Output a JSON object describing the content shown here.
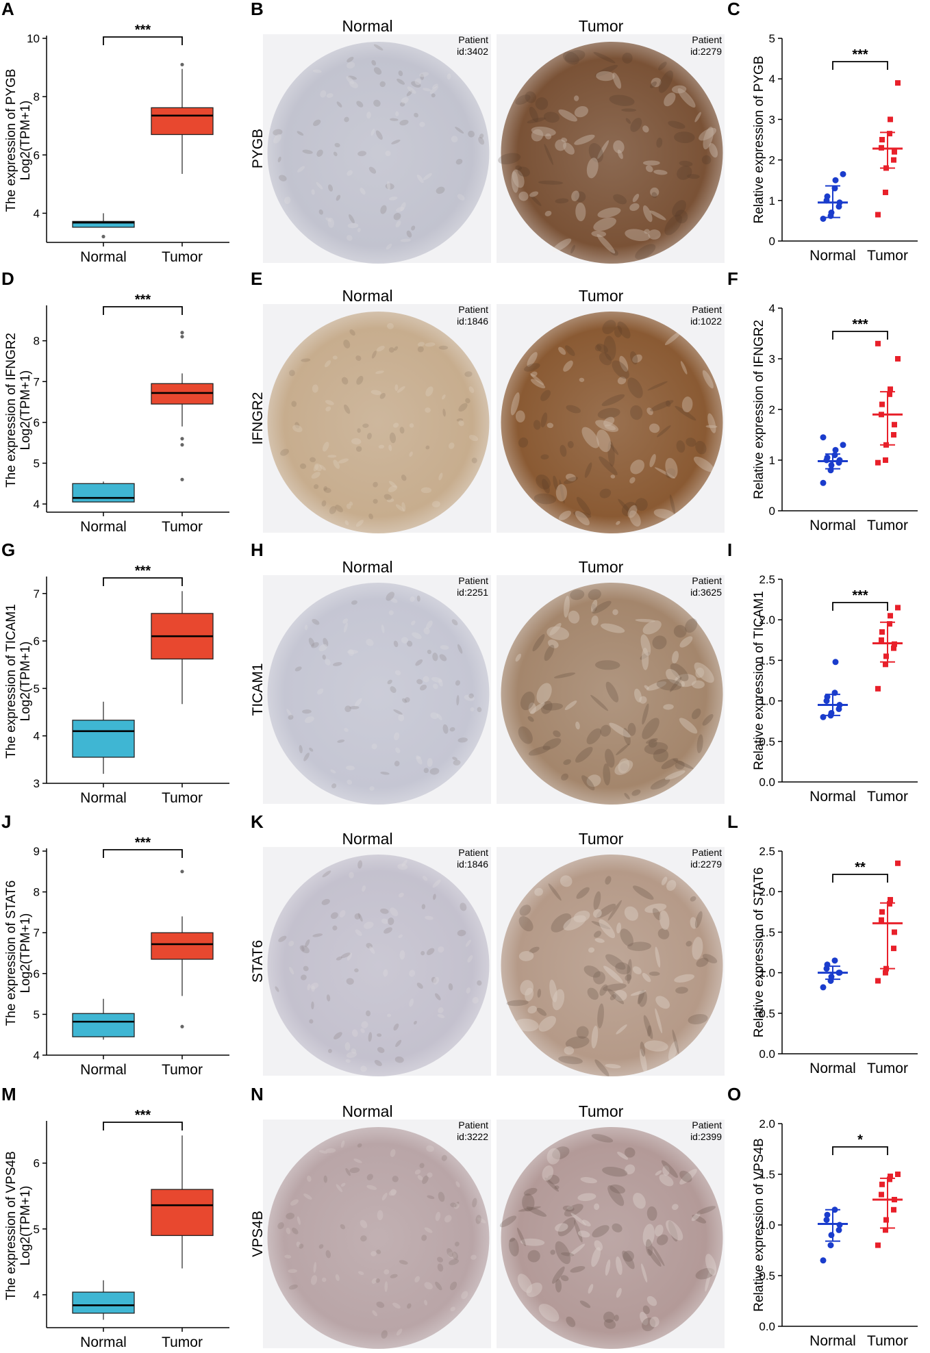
{
  "figure": {
    "rows": [
      {
        "gene": "PYGB",
        "tcga": {
          "letter": "A",
          "ylabel_line1": "The expression of PYGB",
          "ylabel_line2": "Log2(TPM+1)",
          "ylim": [
            3,
            10
          ],
          "ticks": [
            4,
            6,
            8,
            10
          ],
          "categories": [
            "Normal",
            "Tumor"
          ],
          "boxes": [
            {
              "name": "Normal",
              "color": "#3fb6d3",
              "q1": 3.52,
              "median": 3.68,
              "q3": 3.72,
              "whisker_low": 3.52,
              "whisker_high": 4.0,
              "outliers": [
                3.2
              ]
            },
            {
              "name": "Tumor",
              "color": "#e8482f",
              "q1": 6.7,
              "median": 7.35,
              "q3": 7.62,
              "whisker_low": 5.35,
              "whisker_high": 8.95,
              "outliers": [
                9.1
              ]
            }
          ],
          "significance": "***"
        },
        "ihc": {
          "letter": "B",
          "normal_label": "Normal",
          "tumor_label": "Tumor",
          "normal_patient": [
            "Patient",
            "id:3402"
          ],
          "tumor_patient": [
            "Patient",
            "id:2279"
          ],
          "normal_tint": "#c2c3cf",
          "tumor_tint": "#7a5236"
        },
        "qpcr": {
          "letter": "C",
          "ylabel": "Relative expression of PYGB",
          "ylim": [
            0,
            5
          ],
          "ticks": [
            0,
            1,
            2,
            3,
            4,
            5
          ],
          "tick_labels": [
            "0",
            "1",
            "2",
            "3",
            "4",
            "5"
          ],
          "categories": [
            "Normal",
            "Tumor"
          ],
          "groups": [
            {
              "name": "Normal",
              "color": "#1a3ccc",
              "mean": 0.95,
              "sd_low": 0.58,
              "sd_high": 1.36,
              "points": [
                0.55,
                0.62,
                0.7,
                0.85,
                0.95,
                1.0,
                1.1,
                1.3,
                1.5,
                1.65
              ]
            },
            {
              "name": "Tumor",
              "color": "#e8202a",
              "mean": 2.28,
              "sd_low": 1.8,
              "sd_high": 2.68,
              "points": [
                0.65,
                1.2,
                1.8,
                2.0,
                2.2,
                2.3,
                2.5,
                2.65,
                3.0,
                3.9
              ]
            }
          ],
          "significance": "***"
        }
      },
      {
        "gene": "IFNGR2",
        "tcga": {
          "letter": "D",
          "ylabel_line1": "The expression of IFNGR2",
          "ylabel_line2": "Log2(TPM+1)",
          "ylim": [
            3.8,
            8.8
          ],
          "ticks": [
            4,
            5,
            6,
            7,
            8
          ],
          "categories": [
            "Normal",
            "Tumor"
          ],
          "boxes": [
            {
              "name": "Normal",
              "color": "#3fb6d3",
              "q1": 4.05,
              "median": 4.15,
              "q3": 4.5,
              "whisker_low": 4.05,
              "whisker_high": 4.55,
              "outliers": []
            },
            {
              "name": "Tumor",
              "color": "#e8482f",
              "q1": 6.45,
              "median": 6.72,
              "q3": 6.95,
              "whisker_low": 5.9,
              "whisker_high": 7.2,
              "outliers": [
                5.6,
                5.45,
                4.6,
                8.1,
                8.2
              ]
            }
          ],
          "significance": "***"
        },
        "ihc": {
          "letter": "E",
          "normal_label": "Normal",
          "tumor_label": "Tumor",
          "normal_patient": [
            "Patient",
            "id:1846"
          ],
          "tumor_patient": [
            "Patient",
            "id:1022"
          ],
          "normal_tint": "#c7ad8e",
          "tumor_tint": "#8a5a33"
        },
        "qpcr": {
          "letter": "F",
          "ylabel": "Relative expression of IFNGR2",
          "ylim": [
            0,
            4
          ],
          "ticks": [
            0,
            1,
            2,
            3,
            4
          ],
          "tick_labels": [
            "0",
            "1",
            "2",
            "3",
            "4"
          ],
          "categories": [
            "Normal",
            "Tumor"
          ],
          "groups": [
            {
              "name": "Normal",
              "color": "#1a3ccc",
              "mean": 0.98,
              "sd_low": 0.83,
              "sd_high": 1.12,
              "points": [
                0.55,
                0.8,
                0.9,
                0.95,
                1.0,
                1.0,
                1.05,
                1.1,
                1.2,
                1.3,
                1.45
              ]
            },
            {
              "name": "Tumor",
              "color": "#e8202a",
              "mean": 1.9,
              "sd_low": 1.3,
              "sd_high": 2.35,
              "points": [
                0.95,
                1.0,
                1.3,
                1.5,
                1.7,
                1.9,
                2.1,
                2.3,
                2.4,
                3.0,
                3.3
              ]
            }
          ],
          "significance": "***"
        }
      },
      {
        "gene": "TICAM1",
        "tcga": {
          "letter": "G",
          "ylabel_line1": "The expression of TICAM1",
          "ylabel_line2": "Log2(TPM+1)",
          "ylim": [
            3,
            7.3
          ],
          "ticks": [
            3,
            4,
            5,
            6,
            7
          ],
          "categories": [
            "Normal",
            "Tumor"
          ],
          "boxes": [
            {
              "name": "Normal",
              "color": "#3fb6d3",
              "q1": 3.55,
              "median": 4.1,
              "q3": 4.33,
              "whisker_low": 3.2,
              "whisker_high": 4.72,
              "outliers": []
            },
            {
              "name": "Tumor",
              "color": "#e8482f",
              "q1": 5.62,
              "median": 6.1,
              "q3": 6.58,
              "whisker_low": 4.67,
              "whisker_high": 7.05,
              "outliers": []
            }
          ],
          "significance": "***"
        },
        "ihc": {
          "letter": "H",
          "normal_label": "Normal",
          "tumor_label": "Tumor",
          "normal_patient": [
            "Patient",
            "id:2251"
          ],
          "tumor_patient": [
            "Patient",
            "id:3625"
          ],
          "normal_tint": "#c5c6d3",
          "tumor_tint": "#a4866c"
        },
        "qpcr": {
          "letter": "I",
          "ylabel": "Relative expression of TICAM1",
          "ylim": [
            0,
            2.5
          ],
          "ticks": [
            0,
            0.5,
            1,
            1.5,
            2,
            2.5
          ],
          "tick_labels": [
            "0.0",
            "0.5",
            "1.0",
            "1.5",
            "2.0",
            "2.5"
          ],
          "categories": [
            "Normal",
            "Tumor"
          ],
          "groups": [
            {
              "name": "Normal",
              "color": "#1a3ccc",
              "mean": 0.95,
              "sd_low": 0.82,
              "sd_high": 1.08,
              "points": [
                0.8,
                0.82,
                0.85,
                0.9,
                0.95,
                1.0,
                1.05,
                1.1,
                1.48
              ]
            },
            {
              "name": "Tumor",
              "color": "#e8202a",
              "mean": 1.71,
              "sd_low": 1.48,
              "sd_high": 1.97,
              "points": [
                1.15,
                1.45,
                1.55,
                1.65,
                1.7,
                1.75,
                1.85,
                1.95,
                2.05,
                2.15
              ]
            }
          ],
          "significance": "***"
        }
      },
      {
        "gene": "STAT6",
        "tcga": {
          "letter": "J",
          "ylabel_line1": "The expression of STAT6",
          "ylabel_line2": "Log2(TPM+1)",
          "ylim": [
            4,
            9
          ],
          "ticks": [
            4,
            5,
            6,
            7,
            8,
            9
          ],
          "categories": [
            "Normal",
            "Tumor"
          ],
          "boxes": [
            {
              "name": "Normal",
              "color": "#3fb6d3",
              "q1": 4.45,
              "median": 4.82,
              "q3": 5.02,
              "whisker_low": 4.38,
              "whisker_high": 5.38,
              "outliers": []
            },
            {
              "name": "Tumor",
              "color": "#e8482f",
              "q1": 6.35,
              "median": 6.72,
              "q3": 7.0,
              "whisker_low": 5.45,
              "whisker_high": 7.4,
              "outliers": [
                4.7,
                8.5
              ]
            }
          ],
          "significance": "***"
        },
        "ihc": {
          "letter": "K",
          "normal_label": "Normal",
          "tumor_label": "Tumor",
          "normal_patient": [
            "Patient",
            "id:1846"
          ],
          "tumor_patient": [
            "Patient",
            "id:2279"
          ],
          "normal_tint": "#c4c1ce",
          "tumor_tint": "#b59a88"
        },
        "qpcr": {
          "letter": "L",
          "ylabel": "Relative expression of STAT6",
          "ylim": [
            0,
            2.5
          ],
          "ticks": [
            0,
            0.5,
            1,
            1.5,
            2,
            2.5
          ],
          "tick_labels": [
            "0.0",
            "0.5",
            "1.0",
            "1.5",
            "2.0",
            "2.5"
          ],
          "categories": [
            "Normal",
            "Tumor"
          ],
          "groups": [
            {
              "name": "Normal",
              "color": "#1a3ccc",
              "mean": 1.0,
              "sd_low": 0.92,
              "sd_high": 1.08,
              "points": [
                0.82,
                0.9,
                0.95,
                1.0,
                1.0,
                1.05,
                1.1,
                1.15
              ]
            },
            {
              "name": "Tumor",
              "color": "#e8202a",
              "mean": 1.61,
              "sd_low": 1.05,
              "sd_high": 1.86,
              "points": [
                0.9,
                1.0,
                1.05,
                1.3,
                1.5,
                1.65,
                1.75,
                1.85,
                1.9,
                2.35
              ]
            }
          ],
          "significance": "**"
        }
      },
      {
        "gene": "VPS4B",
        "tcga": {
          "letter": "M",
          "ylabel_line1": "The expression of VPS4B",
          "ylabel_line2": "Log2(TPM+1)",
          "ylim": [
            3.5,
            6.6
          ],
          "ticks": [
            4,
            5,
            6
          ],
          "categories": [
            "Normal",
            "Tumor"
          ],
          "boxes": [
            {
              "name": "Normal",
              "color": "#3fb6d3",
              "q1": 3.72,
              "median": 3.84,
              "q3": 4.04,
              "whisker_low": 3.62,
              "whisker_high": 4.22,
              "outliers": []
            },
            {
              "name": "Tumor",
              "color": "#e8482f",
              "q1": 4.9,
              "median": 5.36,
              "q3": 5.6,
              "whisker_low": 4.4,
              "whisker_high": 6.42,
              "outliers": []
            }
          ],
          "significance": "***"
        },
        "ihc": {
          "letter": "N",
          "normal_label": "Normal",
          "tumor_label": "Tumor",
          "normal_patient": [
            "Patient",
            "id:3222"
          ],
          "tumor_patient": [
            "Patient",
            "id:2399"
          ],
          "normal_tint": "#b9a5a7",
          "tumor_tint": "#b39a98"
        },
        "qpcr": {
          "letter": "O",
          "ylabel": "Relative expression of VPS4B",
          "ylim": [
            0,
            2
          ],
          "ticks": [
            0,
            0.5,
            1,
            1.5,
            2
          ],
          "tick_labels": [
            "0.0",
            "0.5",
            "1.0",
            "1.5",
            "2.0"
          ],
          "categories": [
            "Normal",
            "Tumor"
          ],
          "groups": [
            {
              "name": "Normal",
              "color": "#1a3ccc",
              "mean": 1.01,
              "sd_low": 0.84,
              "sd_high": 1.15,
              "points": [
                0.65,
                0.8,
                0.9,
                0.95,
                1.0,
                1.05,
                1.1,
                1.15
              ]
            },
            {
              "name": "Tumor",
              "color": "#e8202a",
              "mean": 1.25,
              "sd_low": 0.97,
              "sd_high": 1.46,
              "points": [
                0.8,
                0.95,
                1.05,
                1.15,
                1.25,
                1.3,
                1.4,
                1.45,
                1.48,
                1.5
              ]
            }
          ],
          "significance": "*"
        }
      }
    ]
  },
  "chart_data": [
    {
      "type": "box",
      "panel": "A",
      "ylabel": "The expression of PYGB Log2(TPM+1)",
      "categories": [
        "Normal",
        "Tumor"
      ],
      "series": [
        {
          "name": "Normal",
          "q1": 3.52,
          "median": 3.68,
          "q3": 3.72,
          "min": 3.52,
          "max": 4.0,
          "outliers": [
            3.2
          ]
        },
        {
          "name": "Tumor",
          "q1": 6.7,
          "median": 7.35,
          "q3": 7.62,
          "min": 5.35,
          "max": 8.95,
          "outliers": [
            9.1
          ]
        }
      ],
      "ylim": [
        3,
        10
      ],
      "significance": "***"
    },
    {
      "type": "scatter",
      "panel": "C",
      "ylabel": "Relative expression of PYGB",
      "categories": [
        "Normal",
        "Tumor"
      ],
      "series": [
        {
          "name": "Normal",
          "mean": 0.95
        },
        {
          "name": "Tumor",
          "mean": 2.28
        }
      ],
      "ylim": [
        0,
        5
      ],
      "significance": "***"
    },
    {
      "type": "box",
      "panel": "D",
      "ylabel": "The expression of IFNGR2 Log2(TPM+1)",
      "categories": [
        "Normal",
        "Tumor"
      ],
      "series": [
        {
          "name": "Normal",
          "median": 4.15
        },
        {
          "name": "Tumor",
          "median": 6.72
        }
      ],
      "significance": "***"
    },
    {
      "type": "scatter",
      "panel": "F",
      "ylabel": "Relative expression of IFNGR2",
      "categories": [
        "Normal",
        "Tumor"
      ],
      "series": [
        {
          "name": "Normal",
          "mean": 0.98
        },
        {
          "name": "Tumor",
          "mean": 1.9
        }
      ],
      "ylim": [
        0,
        4
      ],
      "significance": "***"
    },
    {
      "type": "box",
      "panel": "G",
      "ylabel": "The expression of TICAM1 Log2(TPM+1)",
      "categories": [
        "Normal",
        "Tumor"
      ],
      "series": [
        {
          "name": "Normal",
          "median": 4.1
        },
        {
          "name": "Tumor",
          "median": 6.1
        }
      ],
      "significance": "***"
    },
    {
      "type": "scatter",
      "panel": "I",
      "ylabel": "Relative expression of TICAM1",
      "categories": [
        "Normal",
        "Tumor"
      ],
      "series": [
        {
          "name": "Normal",
          "mean": 0.95
        },
        {
          "name": "Tumor",
          "mean": 1.71
        }
      ],
      "ylim": [
        0,
        2.5
      ],
      "significance": "***"
    },
    {
      "type": "box",
      "panel": "J",
      "ylabel": "The expression of STAT6 Log2(TPM+1)",
      "categories": [
        "Normal",
        "Tumor"
      ],
      "series": [
        {
          "name": "Normal",
          "median": 4.82
        },
        {
          "name": "Tumor",
          "median": 6.72
        }
      ],
      "ylim": [
        4,
        9
      ],
      "significance": "***"
    },
    {
      "type": "scatter",
      "panel": "L",
      "ylabel": "Relative expression of STAT6",
      "categories": [
        "Normal",
        "Tumor"
      ],
      "series": [
        {
          "name": "Normal",
          "mean": 1.0
        },
        {
          "name": "Tumor",
          "mean": 1.61
        }
      ],
      "ylim": [
        0,
        2.5
      ],
      "significance": "**"
    },
    {
      "type": "box",
      "panel": "M",
      "ylabel": "The expression of VPS4B Log2(TPM+1)",
      "categories": [
        "Normal",
        "Tumor"
      ],
      "series": [
        {
          "name": "Normal",
          "median": 3.84
        },
        {
          "name": "Tumor",
          "median": 5.36
        }
      ],
      "significance": "***"
    },
    {
      "type": "scatter",
      "panel": "O",
      "ylabel": "Relative expression of VPS4B",
      "categories": [
        "Normal",
        "Tumor"
      ],
      "series": [
        {
          "name": "Normal",
          "mean": 1.01
        },
        {
          "name": "Tumor",
          "mean": 1.25
        }
      ],
      "ylim": [
        0,
        2
      ],
      "significance": "*"
    }
  ]
}
